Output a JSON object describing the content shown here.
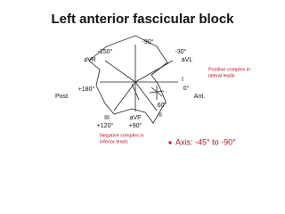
{
  "title": "Left anterior fascicular block",
  "labels": {
    "minus90": "-90°",
    "minus150": "-150°",
    "avr": "aVR",
    "minus30": "-30°",
    "avl": "aVL",
    "lead_i": "I",
    "zero": "0°",
    "plus180": "+180°",
    "post": "Post.",
    "ant": "Ant.",
    "lead_iii": "III",
    "plus120": "+120°",
    "avf": "aVF",
    "plus90": "+90°",
    "lead_ii": "II",
    "plus60": "60°"
  },
  "notes": {
    "positive": [
      "Positive complex in",
      "lateral leads"
    ],
    "negative": [
      "Negative complex in",
      "inferior leads"
    ],
    "axis": "Axis: -45° to -90°"
  }
}
